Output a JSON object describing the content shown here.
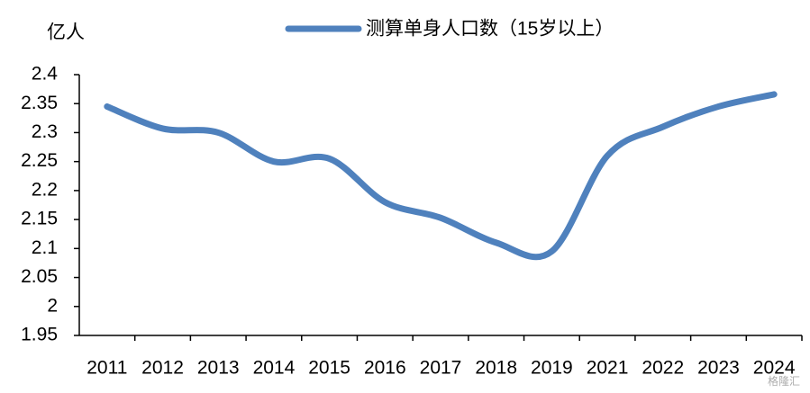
{
  "chart_data": {
    "type": "line",
    "y_unit": "亿人",
    "categories": [
      "2011",
      "2012",
      "2013",
      "2014",
      "2015",
      "2016",
      "2017",
      "2018",
      "2019",
      "2021",
      "2022",
      "2023",
      "2024"
    ],
    "series": [
      {
        "name": "测算单身人口数（15岁以上）",
        "color": "#4f81bd",
        "values": [
          2.345,
          2.307,
          2.3,
          2.25,
          2.255,
          2.18,
          2.153,
          2.11,
          2.095,
          2.26,
          2.31,
          2.345,
          2.366
        ]
      }
    ],
    "ylim": [
      1.95,
      2.4
    ],
    "yticks": [
      1.95,
      2,
      2.05,
      2.1,
      2.15,
      2.2,
      2.25,
      2.3,
      2.35,
      2.4
    ],
    "smooth": true,
    "watermark": "格隆汇"
  }
}
